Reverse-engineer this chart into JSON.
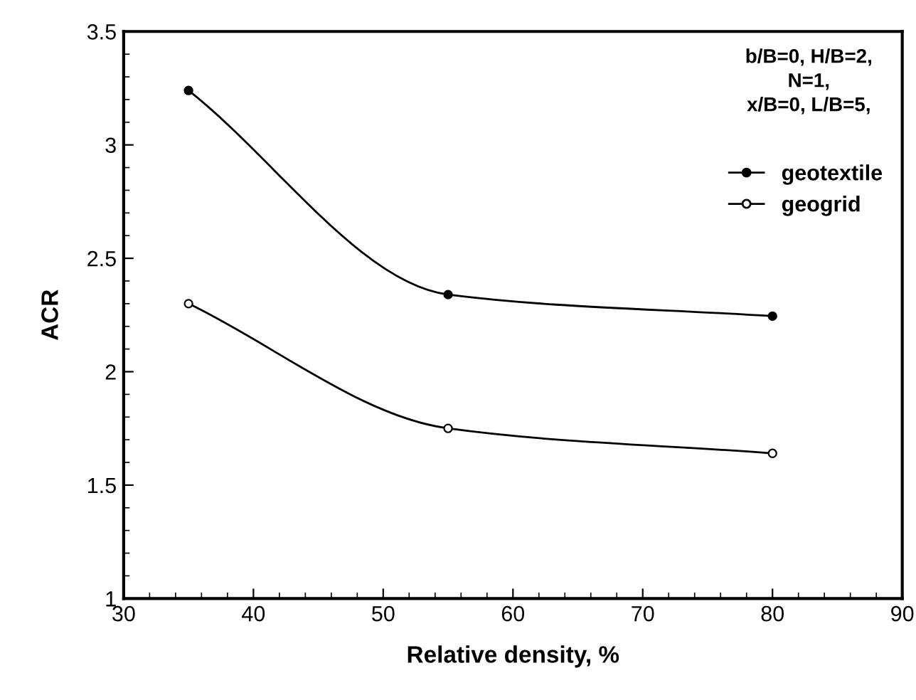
{
  "chart_data": {
    "type": "line",
    "xlabel": "Relative density, %",
    "ylabel": "ACR",
    "x": [
      35,
      55,
      80
    ],
    "series": [
      {
        "name": "geotextile",
        "color": "#000000",
        "values": [
          3.24,
          2.34,
          2.245
        ]
      },
      {
        "name": "geogrid",
        "color": "#000000",
        "values": [
          2.3,
          1.75,
          1.64
        ]
      }
    ],
    "xlim": [
      30,
      90
    ],
    "xticks": [
      30,
      40,
      50,
      60,
      70,
      80,
      90
    ],
    "ylim": [
      1,
      3.5
    ],
    "yticks": [
      1,
      1.5,
      2,
      2.5,
      3,
      3.5
    ],
    "grid": false,
    "legend": "top right",
    "marker": "circle",
    "line_style": "solid",
    "annotations": [
      "b/B=0, H/B=2,\nN=1,\nx/B=0, L/B=5,"
    ]
  }
}
